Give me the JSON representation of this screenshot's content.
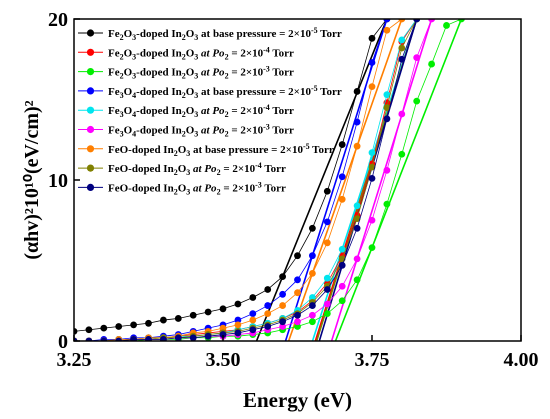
{
  "chart_data": {
    "type": "scatter",
    "title": "",
    "xlabel": "Energy (eV)",
    "ylabel": "(αhv)²10¹⁰(eV/cm)²",
    "xlim": [
      3.25,
      4.0
    ],
    "ylim": [
      0,
      20
    ],
    "x_ticks": [
      "3.25",
      "3.50",
      "3.75",
      "4.00"
    ],
    "y_ticks": [
      "0",
      "10",
      "20"
    ],
    "grid": false,
    "legend_position": "top-left",
    "x": [
      3.25,
      3.275,
      3.3,
      3.325,
      3.35,
      3.375,
      3.4,
      3.425,
      3.45,
      3.475,
      3.5,
      3.525,
      3.55,
      3.575,
      3.6,
      3.625,
      3.65,
      3.675,
      3.7,
      3.725,
      3.75,
      3.775,
      3.8,
      3.825,
      3.85,
      3.875,
      3.9
    ],
    "series": [
      {
        "name": "Fe2O3-doped In2O3 at base pressure = 2×10-5 Torr",
        "legend": {
          "pre": "Fe",
          "s1": "2",
          "mid": "O",
          "s2": "3",
          "mid2": "-doped In",
          "s3": "2",
          "mid3": "O",
          "s4": "3",
          "tail": " at base pressure = 2×10",
          "sup": "-5",
          "end": " Torr"
        },
        "color": "#000000",
        "values": [
          0.6,
          0.7,
          0.8,
          0.9,
          1.0,
          1.1,
          1.3,
          1.4,
          1.6,
          1.8,
          2.0,
          2.3,
          2.7,
          3.2,
          4.0,
          5.3,
          7.0,
          9.3,
          12.2,
          15.5,
          18.8,
          20.0,
          null,
          null,
          null,
          null,
          null
        ]
      },
      {
        "name": "Fe2O3-doped In2O3 at Po2 = 2×10-4 Torr",
        "legend": {
          "pre": "Fe",
          "s1": "2",
          "mid": "O",
          "s2": "3",
          "mid2": "-doped In",
          "s3": "2",
          "mid3": "O",
          "s4": "3",
          "tail": " at Po",
          "s5": "2",
          "tail2": " = 2×10",
          "sup": "-4",
          "end": " Torr"
        },
        "color": "#ff0000",
        "values": [
          0.0,
          0.0,
          0.0,
          0.1,
          0.1,
          0.2,
          0.2,
          0.3,
          0.4,
          0.5,
          0.6,
          0.7,
          0.9,
          1.1,
          1.4,
          1.8,
          2.5,
          3.6,
          5.3,
          7.8,
          11.0,
          14.8,
          18.6,
          20.0,
          null,
          null,
          null
        ]
      },
      {
        "name": "Fe2O3-doped In2O3 at Po2 = 2×10-3 Torr",
        "legend": {
          "pre": "Fe",
          "s1": "2",
          "mid": "O",
          "s2": "3",
          "mid2": "-doped In",
          "s3": "2",
          "mid3": "O",
          "s4": "3",
          "tail": " at Po",
          "s5": "2",
          "tail2": " = 2×10",
          "sup": "-3",
          "end": " Torr"
        },
        "color": "#00ee00",
        "values": [
          0.0,
          0.0,
          0.0,
          0.0,
          0.0,
          0.1,
          0.1,
          0.1,
          0.2,
          0.2,
          0.3,
          0.3,
          0.4,
          0.5,
          0.7,
          0.9,
          1.2,
          1.7,
          2.5,
          3.8,
          5.8,
          8.5,
          11.6,
          14.9,
          17.2,
          19.6,
          20.0
        ]
      },
      {
        "name": "Fe3O4-doped In2O3 at base pressure = 2×10-5 Torr",
        "legend": {
          "pre": "Fe",
          "s1": "3",
          "mid": "O",
          "s2": "4",
          "mid2": "-doped In",
          "s3": "2",
          "mid3": "O",
          "s4": "3",
          "tail": " at base pressure = 2×10",
          "sup": "-5",
          "end": " Torr"
        },
        "color": "#0000ff",
        "values": [
          0.0,
          0.0,
          0.1,
          0.1,
          0.2,
          0.2,
          0.3,
          0.4,
          0.6,
          0.8,
          1.0,
          1.3,
          1.7,
          2.2,
          2.9,
          3.8,
          5.3,
          7.4,
          10.2,
          13.6,
          17.3,
          20.0,
          null,
          null,
          null,
          null,
          null
        ]
      },
      {
        "name": "Fe3O4-doped In2O3 at Po2 = 2×10-4 Torr",
        "legend": {
          "pre": "Fe",
          "s1": "3",
          "mid": "O",
          "s2": "4",
          "mid2": "-doped In",
          "s3": "2",
          "mid3": "O",
          "s4": "3",
          "tail": " at Po",
          "s5": "2",
          "tail2": " = 2×10",
          "sup": "-4",
          "end": " Torr"
        },
        "color": "#00e5ee",
        "values": [
          0.0,
          0.0,
          0.0,
          0.1,
          0.1,
          0.2,
          0.2,
          0.3,
          0.3,
          0.4,
          0.5,
          0.7,
          0.9,
          1.1,
          1.4,
          1.9,
          2.7,
          3.9,
          5.7,
          8.4,
          11.7,
          15.3,
          18.7,
          20.0,
          null,
          null,
          null
        ]
      },
      {
        "name": "Fe3O4-doped In2O3 at Po2 = 2×10-3 Torr",
        "legend": {
          "pre": "Fe",
          "s1": "3",
          "mid": "O",
          "s2": "4",
          "mid2": "-doped In",
          "s3": "2",
          "mid3": "O",
          "s4": "3",
          "tail": " at Po",
          "s5": "2",
          "tail2": " = 2×10",
          "sup": "-3",
          "end": " Torr"
        },
        "color": "#ff00ff",
        "values": [
          0.0,
          0.0,
          0.0,
          0.0,
          0.1,
          0.1,
          0.1,
          0.2,
          0.2,
          0.3,
          0.3,
          0.4,
          0.5,
          0.7,
          0.9,
          1.2,
          1.6,
          2.3,
          3.4,
          5.1,
          7.5,
          10.6,
          14.1,
          17.6,
          20.0,
          null,
          null
        ]
      },
      {
        "name": "FeO-doped In2O3 at base pressure = 2×10-5 Torr",
        "legend": {
          "pre": "FeO-doped In",
          "s3": "2",
          "mid3": "O",
          "s4": "3",
          "tail": " at base pressure = 2×10",
          "sup": "-5",
          "end": " Torr"
        },
        "color": "#ff7f00",
        "values": [
          0.0,
          0.0,
          0.0,
          0.1,
          0.1,
          0.2,
          0.2,
          0.3,
          0.5,
          0.6,
          0.8,
          1.0,
          1.3,
          1.7,
          2.2,
          3.0,
          4.2,
          6.1,
          8.8,
          12.1,
          15.8,
          19.3,
          20.0,
          null,
          null,
          null,
          null
        ]
      },
      {
        "name": "FeO-doped In2O3 at Po2 = 2×10-4 Torr",
        "legend": {
          "pre": "FeO-doped In",
          "s3": "2",
          "mid3": "O",
          "s4": "3",
          "tail": " at Po",
          "s5": "2",
          "tail2": " = 2×10",
          "sup": "-4",
          "end": " Torr"
        },
        "color": "#808000",
        "values": [
          0.0,
          0.0,
          0.0,
          0.0,
          0.1,
          0.1,
          0.2,
          0.2,
          0.3,
          0.4,
          0.5,
          0.6,
          0.8,
          1.0,
          1.3,
          1.7,
          2.4,
          3.4,
          5.1,
          7.6,
          10.8,
          14.5,
          18.2,
          20.0,
          null,
          null,
          null
        ]
      },
      {
        "name": "FeO-doped In2O3 at Po2 = 2×10-3 Torr",
        "legend": {
          "pre": "FeO-doped In",
          "s3": "2",
          "mid3": "O",
          "s4": "3",
          "tail": " at Po",
          "s5": "2",
          "tail2": " = 2×10",
          "sup": "-3",
          "end": " Torr"
        },
        "color": "#000080",
        "values": [
          0.0,
          0.0,
          0.0,
          0.0,
          0.1,
          0.1,
          0.1,
          0.2,
          0.2,
          0.3,
          0.4,
          0.5,
          0.7,
          0.9,
          1.2,
          1.6,
          2.2,
          3.2,
          4.7,
          7.0,
          10.1,
          13.8,
          17.5,
          20.0,
          null,
          null,
          null
        ]
      }
    ]
  }
}
